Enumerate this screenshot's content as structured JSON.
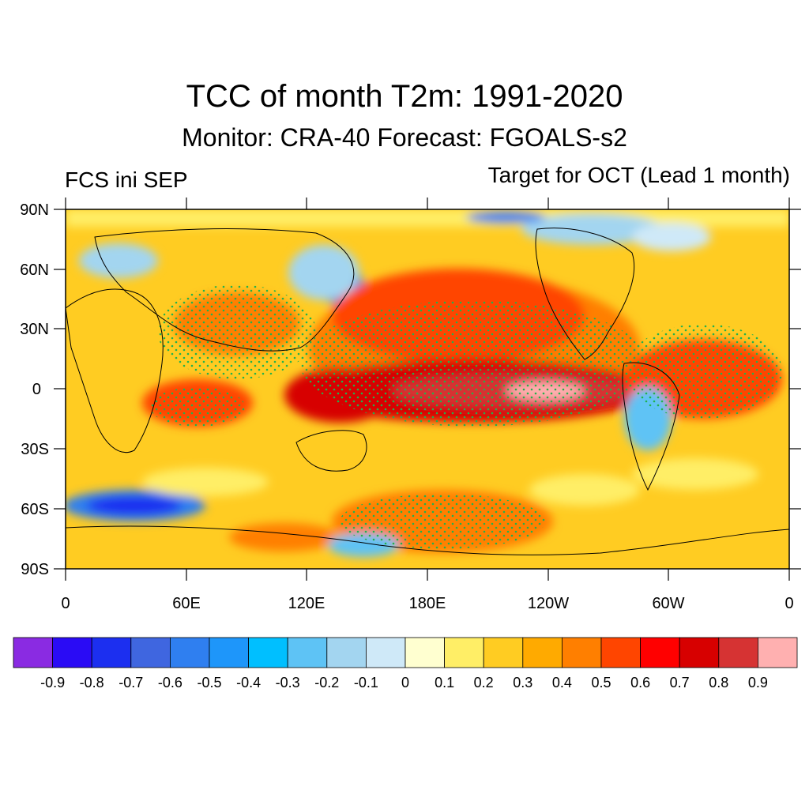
{
  "header": {
    "title": "TCC of month T2m: 1991-2020",
    "subtitle": "Monitor: CRA-40   Forecast: FGOALS-s2",
    "left_label": "FCS ini SEP",
    "right_label": "Target for OCT (Lead 1 month)"
  },
  "map": {
    "projection": "cylindrical-equidistant",
    "lon_range": [
      0,
      360
    ],
    "lat_range": [
      -90,
      90
    ],
    "y_tick_labels": [
      "90N",
      "60N",
      "30N",
      "0",
      "30S",
      "60S",
      "90S"
    ],
    "x_tick_labels": [
      "0",
      "60E",
      "120E",
      "180E",
      "120W",
      "60W",
      "0"
    ],
    "stippling": "green dots over significant areas"
  },
  "colorbar": {
    "labels": [
      "-0.9",
      "-0.8",
      "-0.7",
      "-0.6",
      "-0.5",
      "-0.4",
      "-0.3",
      "-0.2",
      "-0.1",
      "0",
      "0.1",
      "0.2",
      "0.3",
      "0.4",
      "0.5",
      "0.6",
      "0.7",
      "0.8",
      "0.9"
    ],
    "colors": [
      "#8a2be2",
      "#2a0bf5",
      "#1c2ff0",
      "#3f66e0",
      "#2f7ff0",
      "#1e96fa",
      "#00bfff",
      "#5ec3f5",
      "#a3d5f0",
      "#cfe9f8",
      "#ffffd0",
      "#ffee66",
      "#ffcc22",
      "#ffaa00",
      "#ff7f00",
      "#ff4500",
      "#ff0000",
      "#d70000",
      "#d63333",
      "#ffb0b0"
    ]
  }
}
